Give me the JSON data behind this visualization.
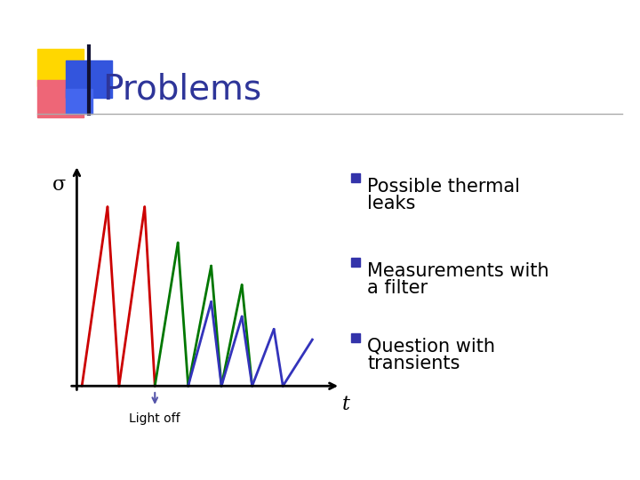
{
  "title": "Problems",
  "title_color": "#2E3599",
  "title_fontsize": 28,
  "background_color": "#ffffff",
  "sigma_label": "σ",
  "t_label": "t",
  "light_off_label": "Light off",
  "bullet_color": "#3333AA",
  "bullet_items": [
    "Possible thermal\nleaks",
    "Measurements with\na filter",
    "Question with\ntransients"
  ],
  "bullet_fontsize": 15,
  "red_color": "#cc0000",
  "green_color": "#007700",
  "blue_color": "#3333bb",
  "axis_color": "#000000",
  "arrow_color": "#5555aa",
  "sq_yellow": "#FFD700",
  "sq_pink": "#EE6677",
  "sq_blue_top": "#3355DD",
  "sq_blue_bot": "#4466EE",
  "line_color": "#333333"
}
